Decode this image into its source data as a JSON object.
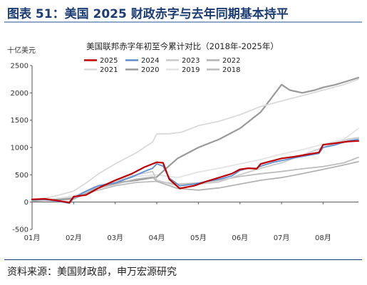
{
  "figure_title": "图表 51：美国 2025 财政赤字与去年同期基本持平",
  "source_note": "资料来源：美国财政部，申万宏源研究",
  "colors": {
    "title": "#1c3d73",
    "s2025": "#c00000",
    "s2024": "#5b8fd1",
    "s2023": "#c9c9c9",
    "s2022": "#b3b3b3",
    "s2021": "#dadada",
    "s2020": "#9a9a9a",
    "s2019": "#e3e3e3",
    "s2018": "#bdbdbd"
  },
  "chart_data": {
    "type": "line",
    "title": "美国联邦赤字年初至今累计对比（2018年-2025年）",
    "ylabel": "十亿美元",
    "ylim": [
      -500,
      2500
    ],
    "yticks": [
      -500,
      0,
      500,
      1000,
      1500,
      2000,
      2500
    ],
    "xlim": [
      0,
      7.85
    ],
    "x_ticks": [
      {
        "x": 0,
        "label": "01月"
      },
      {
        "x": 1,
        "label": "02月"
      },
      {
        "x": 2,
        "label": "03月"
      },
      {
        "x": 3,
        "label": "04月"
      },
      {
        "x": 4,
        "label": "05月"
      },
      {
        "x": 5,
        "label": "06月"
      },
      {
        "x": 6,
        "label": "07月"
      },
      {
        "x": 7,
        "label": "08月"
      }
    ],
    "legend_location": "top",
    "series": [
      {
        "name": "2025",
        "color": "#c00000",
        "width": 2.2,
        "points": [
          [
            0,
            50
          ],
          [
            0.3,
            60
          ],
          [
            0.6,
            30
          ],
          [
            0.9,
            -10
          ],
          [
            1.0,
            100
          ],
          [
            1.3,
            130
          ],
          [
            1.6,
            260
          ],
          [
            2.0,
            400
          ],
          [
            2.4,
            520
          ],
          [
            2.7,
            640
          ],
          [
            2.9,
            700
          ],
          [
            3.0,
            730
          ],
          [
            3.15,
            720
          ],
          [
            3.3,
            420
          ],
          [
            3.55,
            250
          ],
          [
            3.9,
            300
          ],
          [
            4.2,
            380
          ],
          [
            4.5,
            450
          ],
          [
            4.8,
            520
          ],
          [
            5.0,
            600
          ],
          [
            5.2,
            620
          ],
          [
            5.4,
            610
          ],
          [
            5.5,
            700
          ],
          [
            5.8,
            760
          ],
          [
            6.0,
            800
          ],
          [
            6.3,
            830
          ],
          [
            6.6,
            870
          ],
          [
            6.9,
            910
          ],
          [
            7.0,
            1050
          ],
          [
            7.3,
            1080
          ],
          [
            7.6,
            1110
          ],
          [
            7.85,
            1120
          ]
        ]
      },
      {
        "name": "2024",
        "color": "#5b8fd1",
        "width": 1.8,
        "points": [
          [
            0,
            40
          ],
          [
            0.3,
            50
          ],
          [
            0.6,
            20
          ],
          [
            0.9,
            -20
          ],
          [
            1.0,
            80
          ],
          [
            1.3,
            200
          ],
          [
            1.6,
            300
          ],
          [
            2.0,
            350
          ],
          [
            2.4,
            460
          ],
          [
            2.7,
            560
          ],
          [
            2.9,
            620
          ],
          [
            3.0,
            700
          ],
          [
            3.15,
            660
          ],
          [
            3.3,
            440
          ],
          [
            3.55,
            300
          ],
          [
            3.9,
            330
          ],
          [
            4.2,
            380
          ],
          [
            4.5,
            420
          ],
          [
            4.8,
            480
          ],
          [
            5.0,
            580
          ],
          [
            5.2,
            620
          ],
          [
            5.4,
            620
          ],
          [
            5.5,
            660
          ],
          [
            5.8,
            730
          ],
          [
            6.0,
            760
          ],
          [
            6.3,
            810
          ],
          [
            6.6,
            850
          ],
          [
            6.9,
            890
          ],
          [
            7.0,
            1000
          ],
          [
            7.3,
            1050
          ],
          [
            7.6,
            1120
          ],
          [
            7.85,
            1150
          ]
        ]
      },
      {
        "name": "2023",
        "color": "#c9c9c9",
        "width": 1.8,
        "points": [
          [
            0,
            40
          ],
          [
            0.5,
            20
          ],
          [
            0.9,
            10
          ],
          [
            1.0,
            80
          ],
          [
            1.5,
            280
          ],
          [
            2.0,
            380
          ],
          [
            2.5,
            500
          ],
          [
            2.9,
            560
          ],
          [
            3.0,
            400
          ],
          [
            3.5,
            300
          ],
          [
            4.0,
            330
          ],
          [
            4.5,
            370
          ],
          [
            5.0,
            500
          ],
          [
            5.5,
            620
          ],
          [
            6.0,
            720
          ],
          [
            6.5,
            860
          ],
          [
            7.0,
            1000
          ],
          [
            7.3,
            1080
          ],
          [
            7.6,
            1150
          ],
          [
            7.85,
            1180
          ]
        ]
      },
      {
        "name": "2022",
        "color": "#b3b3b3",
        "width": 1.8,
        "points": [
          [
            0,
            20
          ],
          [
            0.5,
            40
          ],
          [
            0.9,
            0
          ],
          [
            1.0,
            60
          ],
          [
            1.5,
            240
          ],
          [
            2.0,
            330
          ],
          [
            2.5,
            420
          ],
          [
            2.9,
            460
          ],
          [
            3.0,
            380
          ],
          [
            3.5,
            250
          ],
          [
            4.0,
            220
          ],
          [
            4.5,
            260
          ],
          [
            5.0,
            330
          ],
          [
            5.5,
            400
          ],
          [
            6.0,
            450
          ],
          [
            6.5,
            520
          ],
          [
            7.0,
            600
          ],
          [
            7.5,
            680
          ],
          [
            7.85,
            740
          ]
        ]
      },
      {
        "name": "2021",
        "color": "#dadada",
        "width": 1.8,
        "points": [
          [
            0,
            30
          ],
          [
            0.5,
            100
          ],
          [
            1.0,
            200
          ],
          [
            1.3,
            350
          ],
          [
            1.6,
            520
          ],
          [
            2.0,
            700
          ],
          [
            2.5,
            900
          ],
          [
            2.9,
            1100
          ],
          [
            3.0,
            1250
          ],
          [
            3.3,
            1250
          ],
          [
            3.6,
            1280
          ],
          [
            4.0,
            1400
          ],
          [
            4.5,
            1480
          ],
          [
            5.0,
            1600
          ],
          [
            5.5,
            1750
          ],
          [
            6.0,
            1850
          ],
          [
            6.5,
            1950
          ],
          [
            7.0,
            2050
          ],
          [
            7.5,
            2150
          ],
          [
            7.85,
            2250
          ]
        ]
      },
      {
        "name": "2020",
        "color": "#9a9a9a",
        "width": 2.2,
        "points": [
          [
            0,
            20
          ],
          [
            0.5,
            40
          ],
          [
            1.0,
            60
          ],
          [
            1.5,
            230
          ],
          [
            2.0,
            350
          ],
          [
            2.5,
            400
          ],
          [
            3.0,
            460
          ],
          [
            3.2,
            600
          ],
          [
            3.5,
            800
          ],
          [
            4.0,
            1000
          ],
          [
            4.5,
            1150
          ],
          [
            5.0,
            1350
          ],
          [
            5.5,
            1650
          ],
          [
            6.0,
            2150
          ],
          [
            6.2,
            2050
          ],
          [
            6.5,
            2000
          ],
          [
            6.8,
            2050
          ],
          [
            7.0,
            2100
          ],
          [
            7.3,
            2150
          ],
          [
            7.6,
            2220
          ],
          [
            7.85,
            2280
          ]
        ]
      },
      {
        "name": "2019",
        "color": "#e3e3e3",
        "width": 1.8,
        "points": [
          [
            0,
            50
          ],
          [
            0.5,
            60
          ],
          [
            1.0,
            110
          ],
          [
            1.5,
            260
          ],
          [
            2.0,
            380
          ],
          [
            2.5,
            470
          ],
          [
            3.0,
            500
          ],
          [
            3.5,
            450
          ],
          [
            4.0,
            550
          ],
          [
            4.5,
            620
          ],
          [
            5.0,
            700
          ],
          [
            5.5,
            780
          ],
          [
            6.0,
            880
          ],
          [
            6.5,
            960
          ],
          [
            7.0,
            1060
          ],
          [
            7.5,
            1150
          ],
          [
            7.85,
            1350
          ]
        ]
      },
      {
        "name": "2018",
        "color": "#bdbdbd",
        "width": 1.8,
        "points": [
          [
            0,
            20
          ],
          [
            0.5,
            50
          ],
          [
            1.0,
            80
          ],
          [
            1.5,
            200
          ],
          [
            2.0,
            300
          ],
          [
            2.5,
            360
          ],
          [
            3.0,
            380
          ],
          [
            3.5,
            330
          ],
          [
            4.0,
            350
          ],
          [
            4.5,
            400
          ],
          [
            5.0,
            470
          ],
          [
            5.5,
            520
          ],
          [
            6.0,
            560
          ],
          [
            6.5,
            610
          ],
          [
            7.0,
            650
          ],
          [
            7.5,
            720
          ],
          [
            7.85,
            820
          ]
        ]
      }
    ]
  }
}
